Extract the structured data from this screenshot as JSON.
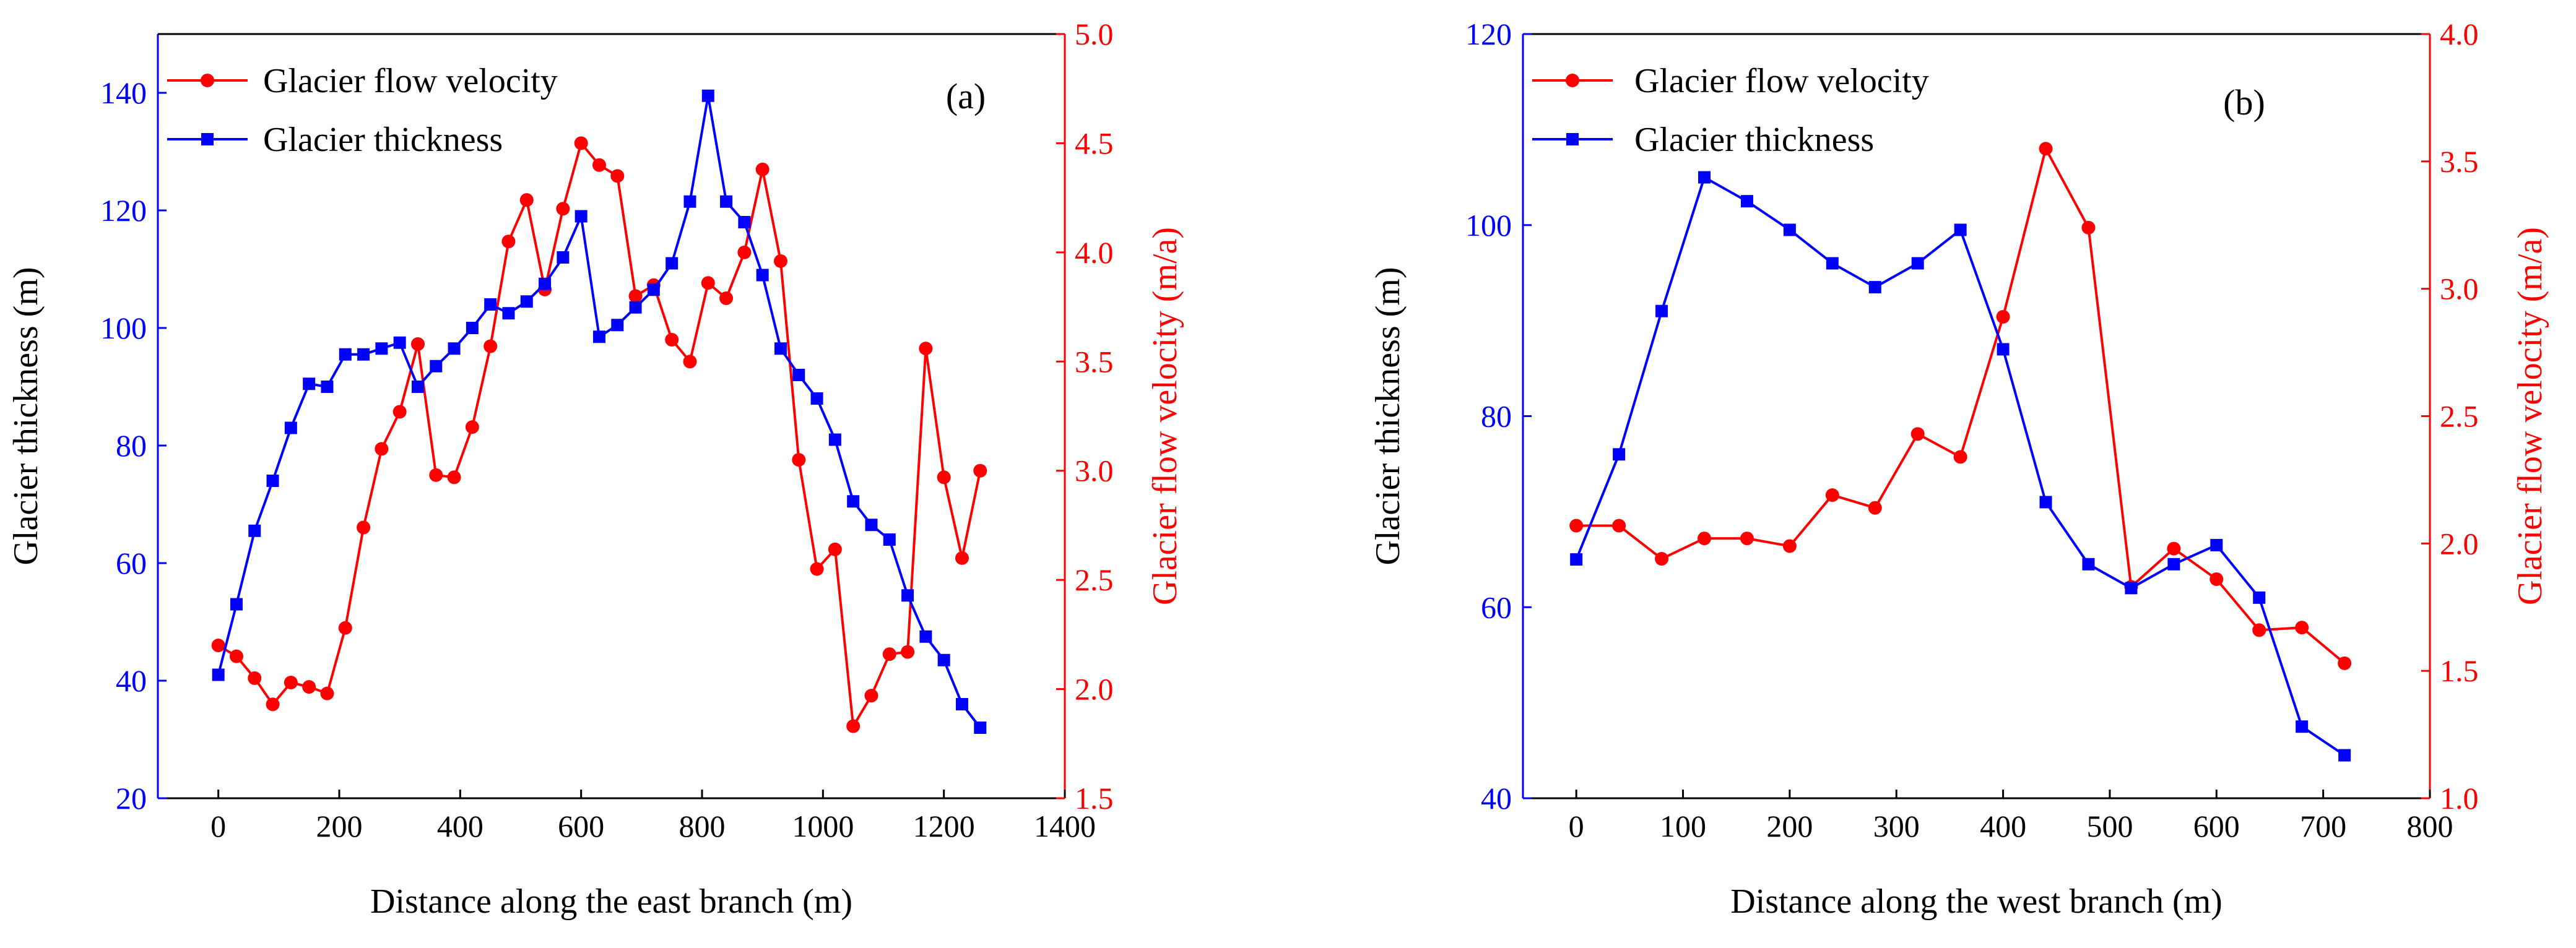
{
  "colors": {
    "velocity": "#ff0000",
    "thickness": "#0000ff",
    "axis": "#000000"
  },
  "chart_data": [
    {
      "type": "line",
      "panel_label": "(a)",
      "xlabel": "Distance along the east branch (m)",
      "ylabel_left": "Glacier thickness (m)",
      "ylabel_right": "Glacier flow velocity (m/a)",
      "xlim": [
        -100,
        1400
      ],
      "xticks": [
        0,
        200,
        400,
        600,
        800,
        1000,
        1200,
        1400
      ],
      "ylim_left": [
        20,
        150
      ],
      "yticks_left": [
        20,
        40,
        60,
        80,
        100,
        120,
        140
      ],
      "ylim_right": [
        1.5,
        5.0
      ],
      "yticks_right": [
        "1.5",
        "2.0",
        "2.5",
        "3.0",
        "3.5",
        "4.0",
        "4.5",
        "5.0"
      ],
      "legend": [
        "Glacier flow velocity",
        "Glacier thickness"
      ],
      "series": [
        {
          "name": "Glacier flow velocity",
          "axis": "right",
          "marker": "circle",
          "color": "#ff0000",
          "x": [
            0,
            30,
            60,
            90,
            120,
            150,
            180,
            210,
            240,
            270,
            300,
            330,
            360,
            390,
            420,
            450,
            480,
            510,
            540,
            570,
            600,
            630,
            660,
            690,
            720,
            750,
            780,
            810,
            840,
            870,
            900,
            930,
            960,
            990,
            1020,
            1050,
            1080,
            1110,
            1140,
            1170,
            1200,
            1230,
            1260
          ],
          "values": [
            2.2,
            2.15,
            2.05,
            1.93,
            2.03,
            2.01,
            1.98,
            2.28,
            2.74,
            3.1,
            3.27,
            3.58,
            2.98,
            2.97,
            3.2,
            3.57,
            4.05,
            4.24,
            3.83,
            4.2,
            4.5,
            4.4,
            4.35,
            3.8,
            3.85,
            3.6,
            3.5,
            3.86,
            3.79,
            4.0,
            4.38,
            3.96,
            3.05,
            2.55,
            2.64,
            1.83,
            1.97,
            2.16,
            2.17,
            3.56,
            2.97,
            2.6,
            3.0
          ]
        },
        {
          "name": "Glacier thickness",
          "axis": "left",
          "marker": "square",
          "color": "#0000ff",
          "x": [
            0,
            30,
            60,
            90,
            120,
            150,
            180,
            210,
            240,
            270,
            300,
            330,
            360,
            390,
            420,
            450,
            480,
            510,
            540,
            570,
            600,
            630,
            660,
            690,
            720,
            750,
            780,
            810,
            840,
            870,
            900,
            930,
            960,
            990,
            1020,
            1050,
            1080,
            1110,
            1140,
            1170,
            1200,
            1230,
            1260
          ],
          "values": [
            41,
            53,
            65.5,
            74,
            83,
            90.5,
            90,
            95.5,
            95.5,
            96.5,
            97.5,
            90,
            93.5,
            96.5,
            100,
            104,
            102.5,
            104.5,
            107.5,
            112,
            119,
            98.5,
            100.5,
            103.5,
            106.5,
            111,
            121.5,
            139.5,
            121.5,
            118,
            109,
            96.5,
            92,
            88,
            81,
            70.5,
            66.5,
            64,
            54.5,
            47.5,
            43.5,
            36,
            32
          ]
        }
      ]
    },
    {
      "type": "line",
      "panel_label": "(b)",
      "xlabel": "Distance along the west branch (m)",
      "ylabel_left": "Glacier thickness (m)",
      "ylabel_right": "Glacier flow velocity (m/a)",
      "xlim": [
        -50,
        800
      ],
      "xticks": [
        0,
        100,
        200,
        300,
        400,
        500,
        600,
        700,
        800
      ],
      "ylim_left": [
        40,
        120
      ],
      "yticks_left": [
        40,
        60,
        80,
        100,
        120
      ],
      "ylim_right": [
        1.0,
        4.0
      ],
      "yticks_right": [
        "1.0",
        "1.5",
        "2.0",
        "2.5",
        "3.0",
        "3.5",
        "4.0"
      ],
      "legend": [
        "Glacier flow velocity",
        "Glacier thickness"
      ],
      "series": [
        {
          "name": "Glacier flow velocity",
          "axis": "right",
          "marker": "circle",
          "color": "#ff0000",
          "x": [
            0,
            40,
            80,
            120,
            160,
            200,
            240,
            280,
            320,
            360,
            400,
            440,
            480,
            520,
            560,
            600,
            640,
            680,
            720
          ],
          "values": [
            2.07,
            2.07,
            1.94,
            2.02,
            2.02,
            1.99,
            2.19,
            2.14,
            2.43,
            2.34,
            2.89,
            3.55,
            3.24,
            1.83,
            1.98,
            1.86,
            1.66,
            1.67,
            1.53
          ]
        },
        {
          "name": "Glacier thickness",
          "axis": "left",
          "marker": "square",
          "color": "#0000ff",
          "x": [
            0,
            40,
            80,
            120,
            160,
            200,
            240,
            280,
            320,
            360,
            400,
            440,
            480,
            520,
            560,
            600,
            640,
            680,
            720
          ],
          "values": [
            65,
            76,
            91,
            105,
            102.5,
            99.5,
            96,
            93.5,
            96,
            99.5,
            87,
            71,
            64.5,
            62,
            64.5,
            66.5,
            61,
            47.5,
            44.5
          ]
        }
      ]
    }
  ]
}
